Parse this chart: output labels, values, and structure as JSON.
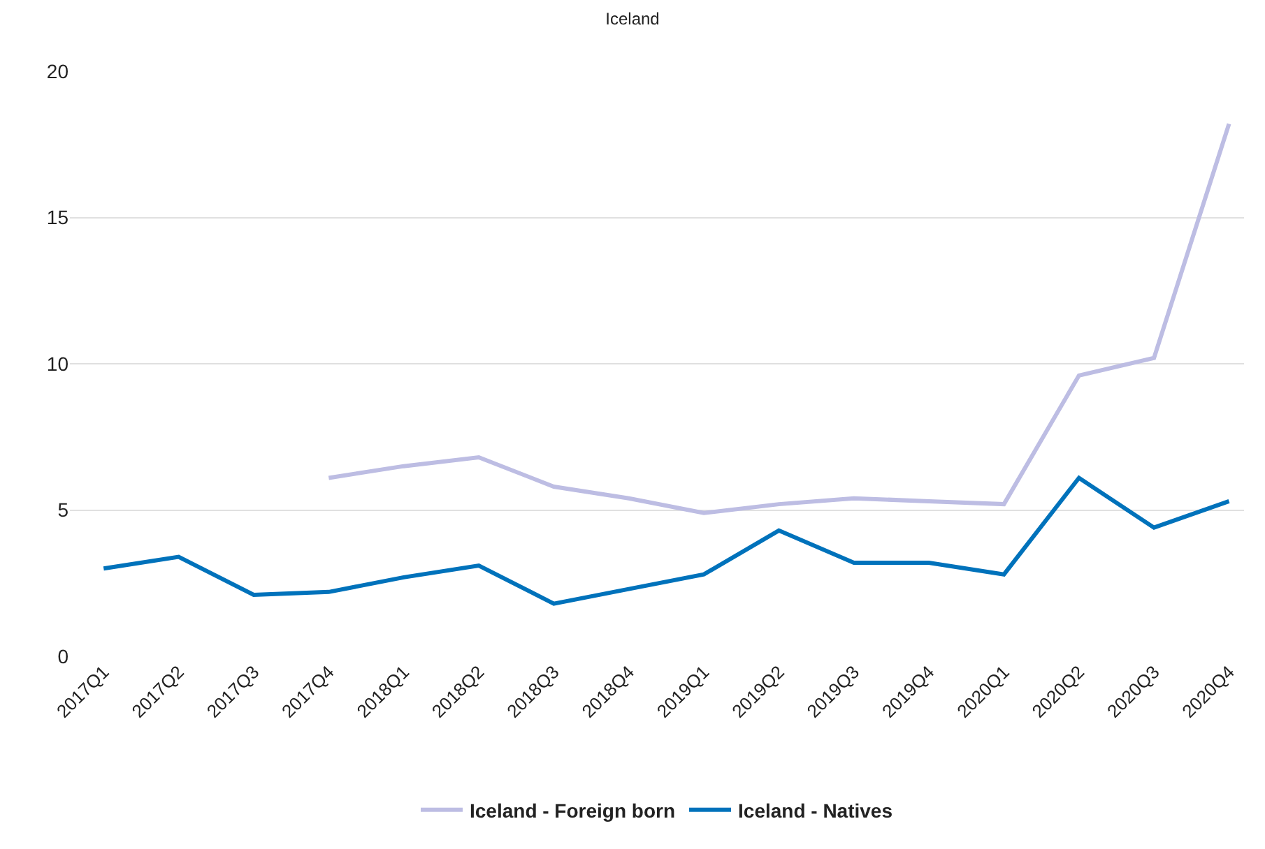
{
  "chart_data": {
    "type": "line",
    "title": "Iceland",
    "categories": [
      "2017Q1",
      "2017Q2",
      "2017Q3",
      "2017Q4",
      "2018Q1",
      "2018Q2",
      "2018Q3",
      "2018Q4",
      "2019Q1",
      "2019Q2",
      "2019Q3",
      "2019Q4",
      "2020Q1",
      "2020Q2",
      "2020Q3",
      "2020Q4"
    ],
    "series": [
      {
        "name": "Iceland - Foreign born",
        "color": "#bdbde3",
        "values": [
          null,
          null,
          null,
          6.1,
          6.5,
          6.8,
          5.8,
          5.4,
          4.9,
          5.2,
          5.4,
          5.3,
          5.2,
          9.6,
          10.2,
          18.2
        ]
      },
      {
        "name": "Iceland - Natives",
        "color": "#0072bb",
        "values": [
          3.0,
          3.4,
          2.1,
          2.2,
          2.7,
          3.1,
          1.8,
          2.3,
          2.8,
          4.3,
          3.2,
          3.2,
          2.8,
          6.1,
          4.4,
          5.3
        ]
      }
    ],
    "ylim": [
      0,
      20
    ],
    "yticks": [
      0,
      5,
      10,
      15,
      20
    ],
    "grid": "y",
    "legend": "bottom",
    "marker": "none",
    "line_style": "solid"
  }
}
